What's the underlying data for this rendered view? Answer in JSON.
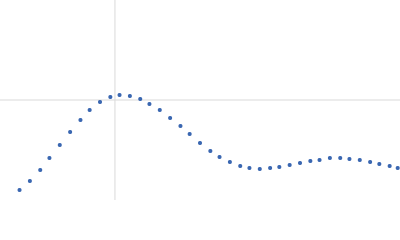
{
  "chart_data": {
    "type": "scatter",
    "x": [
      0.17,
      0.26,
      0.35,
      0.43,
      0.52,
      0.61,
      0.7,
      0.78,
      0.87,
      0.96,
      1.04,
      1.13,
      1.22,
      1.3,
      1.39,
      1.48,
      1.57,
      1.65,
      1.74,
      1.83,
      1.91,
      2.0,
      2.09,
      2.17,
      2.26,
      2.35,
      2.43,
      2.52,
      2.61,
      2.7,
      2.78,
      2.87,
      2.96,
      3.04,
      3.13,
      3.22,
      3.3,
      3.39,
      3.46
    ],
    "series": [
      {
        "color": "#3a67b1",
        "values": [
          0.1,
          0.19,
          0.3,
          0.42,
          0.55,
          0.68,
          0.8,
          0.9,
          0.98,
          1.03,
          1.05,
          1.04,
          1.01,
          0.96,
          0.9,
          0.82,
          0.74,
          0.66,
          0.57,
          0.49,
          0.43,
          0.38,
          0.34,
          0.32,
          0.31,
          0.32,
          0.33,
          0.35,
          0.37,
          0.39,
          0.4,
          0.42,
          0.42,
          0.41,
          0.4,
          0.38,
          0.36,
          0.34,
          0.32
        ]
      }
    ],
    "xlim": [
      0,
      3.48
    ],
    "ylim": [
      0,
      2
    ],
    "xticks": [
      1
    ],
    "yticks": [
      1
    ],
    "grid": true,
    "tick_labels": false
  }
}
